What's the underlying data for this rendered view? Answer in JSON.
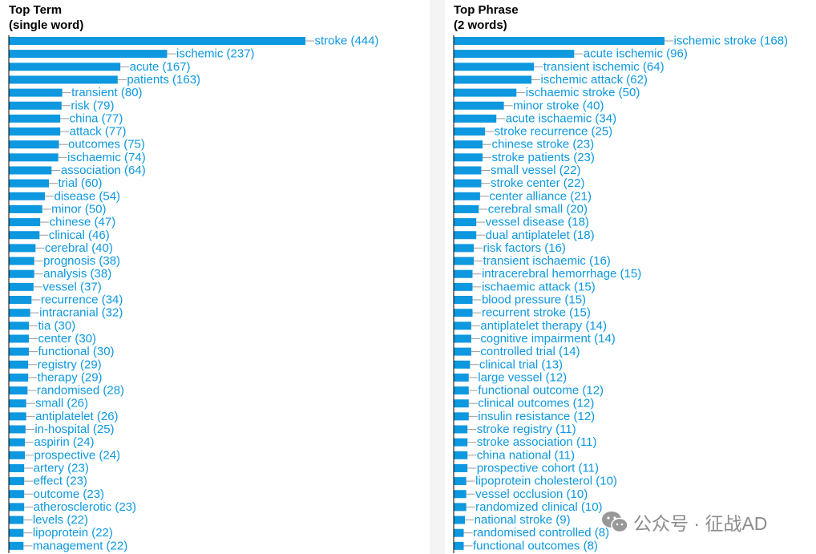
{
  "colors": {
    "bar": "#0d98df",
    "label": "#0d98df",
    "axis": "#000000",
    "connector": "#9a9a9a"
  },
  "watermark": {
    "text": "公众号 · 征战AD",
    "icon": "wechat-logo-icon"
  },
  "chart_data": [
    {
      "type": "bar",
      "orientation": "horizontal",
      "title": [
        "Top Term",
        "(single word)"
      ],
      "categories": [
        "stroke",
        "ischemic",
        "acute",
        "patients",
        "transient",
        "risk",
        "china",
        "attack",
        "outcomes",
        "ischaemic",
        "association",
        "trial",
        "disease",
        "minor",
        "chinese",
        "clinical",
        "cerebral",
        "prognosis",
        "analysis",
        "vessel",
        "recurrence",
        "intracranial",
        "tia",
        "center",
        "functional",
        "registry",
        "therapy",
        "randomised",
        "small",
        "antiplatelet",
        "in-hospital",
        "aspirin",
        "prospective",
        "artery",
        "effect",
        "outcome",
        "atherosclerotic",
        "levels",
        "lipoprotein",
        "management"
      ],
      "values": [
        444,
        237,
        167,
        163,
        80,
        79,
        77,
        77,
        75,
        74,
        64,
        60,
        54,
        50,
        47,
        46,
        40,
        38,
        38,
        37,
        34,
        32,
        30,
        30,
        30,
        29,
        29,
        28,
        26,
        26,
        25,
        24,
        24,
        23,
        23,
        23,
        23,
        22,
        22,
        22
      ],
      "labels": [
        "stroke (444)",
        "ischemic (237)",
        "acute (167)",
        "patients (163)",
        "transient (80)",
        "risk (79)",
        "china (77)",
        "attack (77)",
        "outcomes (75)",
        "ischaemic (74)",
        "association (64)",
        "trial (60)",
        "disease (54)",
        "minor (50)",
        "chinese (47)",
        "clinical (46)",
        "cerebral (40)",
        "prognosis (38)",
        "analysis (38)",
        "vessel (37)",
        "recurrence (34)",
        "intracranial (32)",
        "tia (30)",
        "center (30)",
        "functional (30)",
        "registry (29)",
        "therapy (29)",
        "randomised (28)",
        "small (26)",
        "antiplatelet (26)",
        "in-hospital (25)",
        "aspirin (24)",
        "prospective (24)",
        "artery (23)",
        "effect (23)",
        "outcome (23)",
        "atherosclerotic (23)",
        "levels (22)",
        "lipoprotein (22)",
        "management (22)"
      ]
    },
    {
      "type": "bar",
      "orientation": "horizontal",
      "title": [
        "Top Phrase",
        "(2 words)"
      ],
      "categories": [
        "ischemic stroke",
        "acute ischemic",
        "transient ischemic",
        "ischemic attack",
        "ischaemic stroke",
        "minor stroke",
        "acute ischaemic",
        "stroke recurrence",
        "chinese stroke",
        "stroke patients",
        "small vessel",
        "stroke center",
        "center alliance",
        "cerebral small",
        "vessel disease",
        "dual antiplatelet",
        "risk factors",
        "transient ischaemic",
        "intracerebral hemorrhage",
        "ischaemic attack",
        "blood pressure",
        "recurrent stroke",
        "antiplatelet therapy",
        "cognitive impairment",
        "controlled trial",
        "clinical trial",
        "large vessel",
        "functional outcome",
        "clinical outcomes",
        "insulin resistance",
        "stroke registry",
        "stroke association",
        "china national",
        "prospective cohort",
        "lipoprotein cholesterol",
        "vessel occlusion",
        "randomized clinical",
        "national stroke",
        "randomised controlled",
        "functional outcomes"
      ],
      "values": [
        168,
        96,
        64,
        62,
        50,
        40,
        34,
        25,
        23,
        23,
        22,
        22,
        21,
        20,
        18,
        18,
        16,
        16,
        15,
        15,
        15,
        15,
        14,
        14,
        14,
        13,
        12,
        12,
        12,
        12,
        11,
        11,
        11,
        11,
        10,
        10,
        10,
        9,
        8,
        8
      ],
      "labels": [
        "ischemic stroke (168)",
        "acute ischemic (96)",
        "transient ischemic (64)",
        "ischemic attack (62)",
        "ischaemic stroke (50)",
        "minor stroke (40)",
        "acute ischaemic (34)",
        "stroke recurrence (25)",
        "chinese stroke (23)",
        "stroke patients (23)",
        "small vessel (22)",
        "stroke center (22)",
        "center alliance (21)",
        "cerebral small (20)",
        "vessel disease (18)",
        "dual antiplatelet (18)",
        "risk factors (16)",
        "transient ischaemic (16)",
        "intracerebral hemorrhage (15)",
        "ischaemic attack (15)",
        "blood pressure (15)",
        "recurrent stroke (15)",
        "antiplatelet therapy (14)",
        "cognitive impairment (14)",
        "controlled trial (14)",
        "clinical trial (13)",
        "large vessel (12)",
        "functional outcome (12)",
        "clinical outcomes (12)",
        "insulin resistance (12)",
        "stroke registry (11)",
        "stroke association (11)",
        "china national (11)",
        "prospective cohort (11)",
        "lipoprotein cholesterol (10)",
        "vessel occlusion (10)",
        "randomized clinical (10)",
        "national stroke (9)",
        "randomised controlled (8)",
        "functional outcomes (8)"
      ]
    }
  ]
}
